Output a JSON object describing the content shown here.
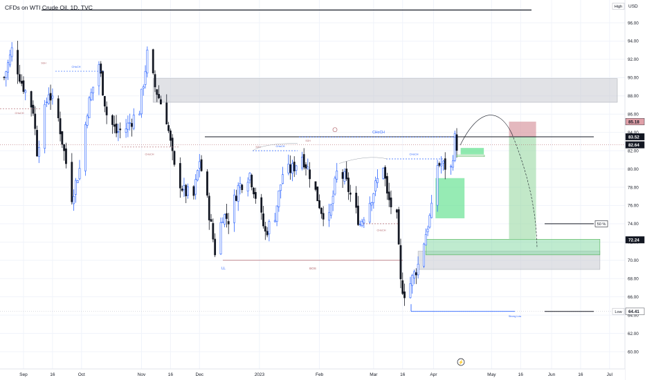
{
  "header": {
    "title": "CFDs on WTI Crude Oil, 1D, TVC"
  },
  "axis": {
    "currency": "USD",
    "high_tag": "High",
    "low_tag": "Low",
    "y_ticks": [
      "60.00",
      "62.00",
      "64.00",
      "66.00",
      "68.00",
      "70.00",
      "72.00",
      "74.00",
      "76.00",
      "78.00",
      "80.00",
      "82.00",
      "84.00",
      "86.00",
      "88.00",
      "90.00",
      "92.00",
      "94.00",
      "96.00"
    ],
    "x_ticks": [
      "Sep",
      "16",
      "Oct",
      "Nov",
      "16",
      "Dec",
      "2023",
      "Feb",
      "Mar",
      "16",
      "Apr",
      "May",
      "16",
      "Jun",
      "16",
      "Jul"
    ]
  },
  "price_tags": [
    {
      "label": "85.18",
      "price": 85.18,
      "color": "#e0a0a8",
      "text_color": "#131722"
    },
    {
      "label": "83.52",
      "price": 83.52,
      "color": "#131722",
      "text_color": "#ffffff"
    },
    {
      "label": "82.64",
      "price": 82.64,
      "color": "#131722",
      "text_color": "#ffffff"
    },
    {
      "label": "72.24",
      "price": 72.24,
      "color": "#131722",
      "text_color": "#ffffff"
    },
    {
      "label": "64.41",
      "price": 64.41,
      "color": "#ffffff",
      "text_color": "#131722"
    }
  ],
  "fifty_label": "50 %",
  "annotations": {
    "choch": "CHoCH",
    "bos": "BOS",
    "ll": "LL",
    "sgh": "SGH",
    "swing_low": "Strong Low"
  },
  "colors": {
    "up": "#2962ff",
    "down": "#131722",
    "zone_gray": "#d1d4dc",
    "target_green": "#4caf50",
    "stop_red": "#c8606e",
    "choch_blue": "#2962ff",
    "bos_red": "#b2656b"
  },
  "chart_data": {
    "type": "candlestick",
    "title": "CFDs on WTI Crude Oil, 1D, TVC",
    "symbol": "WTI Crude Oil",
    "timeframe": "1D",
    "x_range": [
      "2022-08-22",
      "2023-07-05"
    ],
    "ylim": [
      58.5,
      98.5
    ],
    "series_close_path": [
      [
        "2022-08-22",
        90.0
      ],
      [
        "2022-08-26",
        93.0
      ],
      [
        "2022-08-31",
        89.5
      ],
      [
        "2022-09-06",
        86.5
      ],
      [
        "2022-09-08",
        82.0
      ],
      [
        "2022-09-14",
        88.5
      ],
      [
        "2022-09-19",
        85.5
      ],
      [
        "2022-09-26",
        77.0
      ],
      [
        "2022-09-30",
        80.0
      ],
      [
        "2022-10-04",
        86.5
      ],
      [
        "2022-10-10",
        91.5
      ],
      [
        "2022-10-14",
        86.0
      ],
      [
        "2022-10-19",
        84.0
      ],
      [
        "2022-10-24",
        84.5
      ],
      [
        "2022-10-31",
        86.5
      ],
      [
        "2022-11-04",
        92.5
      ],
      [
        "2022-11-08",
        89.0
      ],
      [
        "2022-11-14",
        85.5
      ],
      [
        "2022-11-18",
        80.0
      ],
      [
        "2022-11-23",
        77.5
      ],
      [
        "2022-11-28",
        77.0
      ],
      [
        "2022-12-01",
        81.0
      ],
      [
        "2022-12-05",
        76.5
      ],
      [
        "2022-12-09",
        71.0
      ],
      [
        "2022-12-13",
        75.0
      ],
      [
        "2022-12-16",
        74.5
      ],
      [
        "2022-12-21",
        78.0
      ],
      [
        "2022-12-27",
        79.5
      ],
      [
        "2023-01-04",
        73.0
      ],
      [
        "2023-01-09",
        75.0
      ],
      [
        "2023-01-13",
        79.5
      ],
      [
        "2023-01-18",
        80.0
      ],
      [
        "2023-01-23",
        81.5
      ],
      [
        "2023-01-27",
        79.5
      ],
      [
        "2023-02-02",
        75.5
      ],
      [
        "2023-02-06",
        74.5
      ],
      [
        "2023-02-10",
        79.5
      ],
      [
        "2023-02-14",
        79.0
      ],
      [
        "2023-02-22",
        74.0
      ],
      [
        "2023-02-28",
        77.0
      ],
      [
        "2023-03-06",
        80.5
      ],
      [
        "2023-03-08",
        77.0
      ],
      [
        "2023-03-13",
        74.5
      ],
      [
        "2023-03-15",
        67.5
      ],
      [
        "2023-03-17",
        66.5
      ],
      [
        "2023-03-20",
        67.5
      ],
      [
        "2023-03-24",
        69.5
      ],
      [
        "2023-03-28",
        73.0
      ],
      [
        "2023-03-31",
        75.5
      ],
      [
        "2023-04-03",
        80.5
      ],
      [
        "2023-04-05",
        80.5
      ],
      [
        "2023-04-10",
        80.0
      ],
      [
        "2023-04-12",
        83.3
      ],
      [
        "2023-04-13",
        82.6
      ]
    ],
    "horizontal_levels": [
      {
        "price": 97.4,
        "label": ""
      },
      {
        "price": 83.52,
        "label": ""
      },
      {
        "price": 82.64,
        "label": ""
      },
      {
        "price": 72.24,
        "label": ""
      },
      {
        "price": 64.41,
        "label": "Low"
      }
    ],
    "zones": [
      {
        "name": "gray supply zone",
        "from": "2022-11-07",
        "to": "2023-07-05",
        "price_low": 87.3,
        "price_high": 89.9
      },
      {
        "name": "gray demand zone",
        "from": "2023-03-24",
        "to": "2023-06-26",
        "price_low": 69.0,
        "price_high": 71.0
      },
      {
        "name": "green demand zone",
        "from": "2023-03-28",
        "to": "2023-06-26",
        "price_low": 70.6,
        "price_high": 72.3
      },
      {
        "name": "green imbalance",
        "from": "2023-04-02",
        "to": "2023-04-17",
        "price_low": 74.6,
        "price_high": 79.0
      },
      {
        "name": "green small zone",
        "from": "2023-04-15",
        "to": "2023-04-27",
        "price_low": 81.6,
        "price_high": 82.3
      },
      {
        "name": "short target",
        "from": "2023-05-10",
        "to": "2023-05-24",
        "price_low": 72.24,
        "price_high": 83.52
      },
      {
        "name": "short stop",
        "from": "2023-05-10",
        "to": "2023-05-24",
        "price_low": 83.52,
        "price_high": 85.18
      }
    ],
    "fifty_percent_level": 74.0,
    "legend": "none",
    "grid": true
  }
}
